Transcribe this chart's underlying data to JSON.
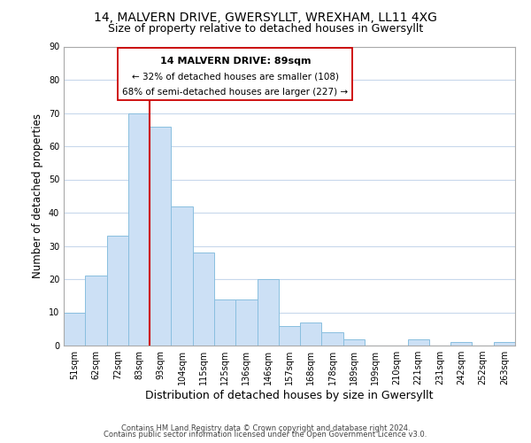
{
  "title_line1": "14, MALVERN DRIVE, GWERSYLLT, WREXHAM, LL11 4XG",
  "title_line2": "Size of property relative to detached houses in Gwersyllt",
  "xlabel": "Distribution of detached houses by size in Gwersyllt",
  "ylabel": "Number of detached properties",
  "bar_labels": [
    "51sqm",
    "62sqm",
    "72sqm",
    "83sqm",
    "93sqm",
    "104sqm",
    "115sqm",
    "125sqm",
    "136sqm",
    "146sqm",
    "157sqm",
    "168sqm",
    "178sqm",
    "189sqm",
    "199sqm",
    "210sqm",
    "221sqm",
    "231sqm",
    "242sqm",
    "252sqm",
    "263sqm"
  ],
  "bar_values": [
    10,
    21,
    33,
    70,
    66,
    42,
    28,
    14,
    14,
    20,
    6,
    7,
    4,
    2,
    0,
    0,
    2,
    0,
    1,
    0,
    1
  ],
  "bar_color": "#cce0f5",
  "bar_edge_color": "#89bfdf",
  "vline_color": "#cc0000",
  "vline_x_index": 3.5,
  "ylim": [
    0,
    90
  ],
  "yticks": [
    0,
    10,
    20,
    30,
    40,
    50,
    60,
    70,
    80,
    90
  ],
  "annotation_text_line1": "14 MALVERN DRIVE: 89sqm",
  "annotation_text_line2": "← 32% of detached houses are smaller (108)",
  "annotation_text_line3": "68% of semi-detached houses are larger (227) →",
  "footer_line1": "Contains HM Land Registry data © Crown copyright and database right 2024.",
  "footer_line2": "Contains public sector information licensed under the Open Government Licence v3.0.",
  "background_color": "#ffffff",
  "grid_color": "#c8d8ec",
  "title_fontsize": 10,
  "subtitle_fontsize": 9,
  "tick_fontsize": 7,
  "ylabel_fontsize": 8.5,
  "xlabel_fontsize": 9,
  "footer_fontsize": 6
}
